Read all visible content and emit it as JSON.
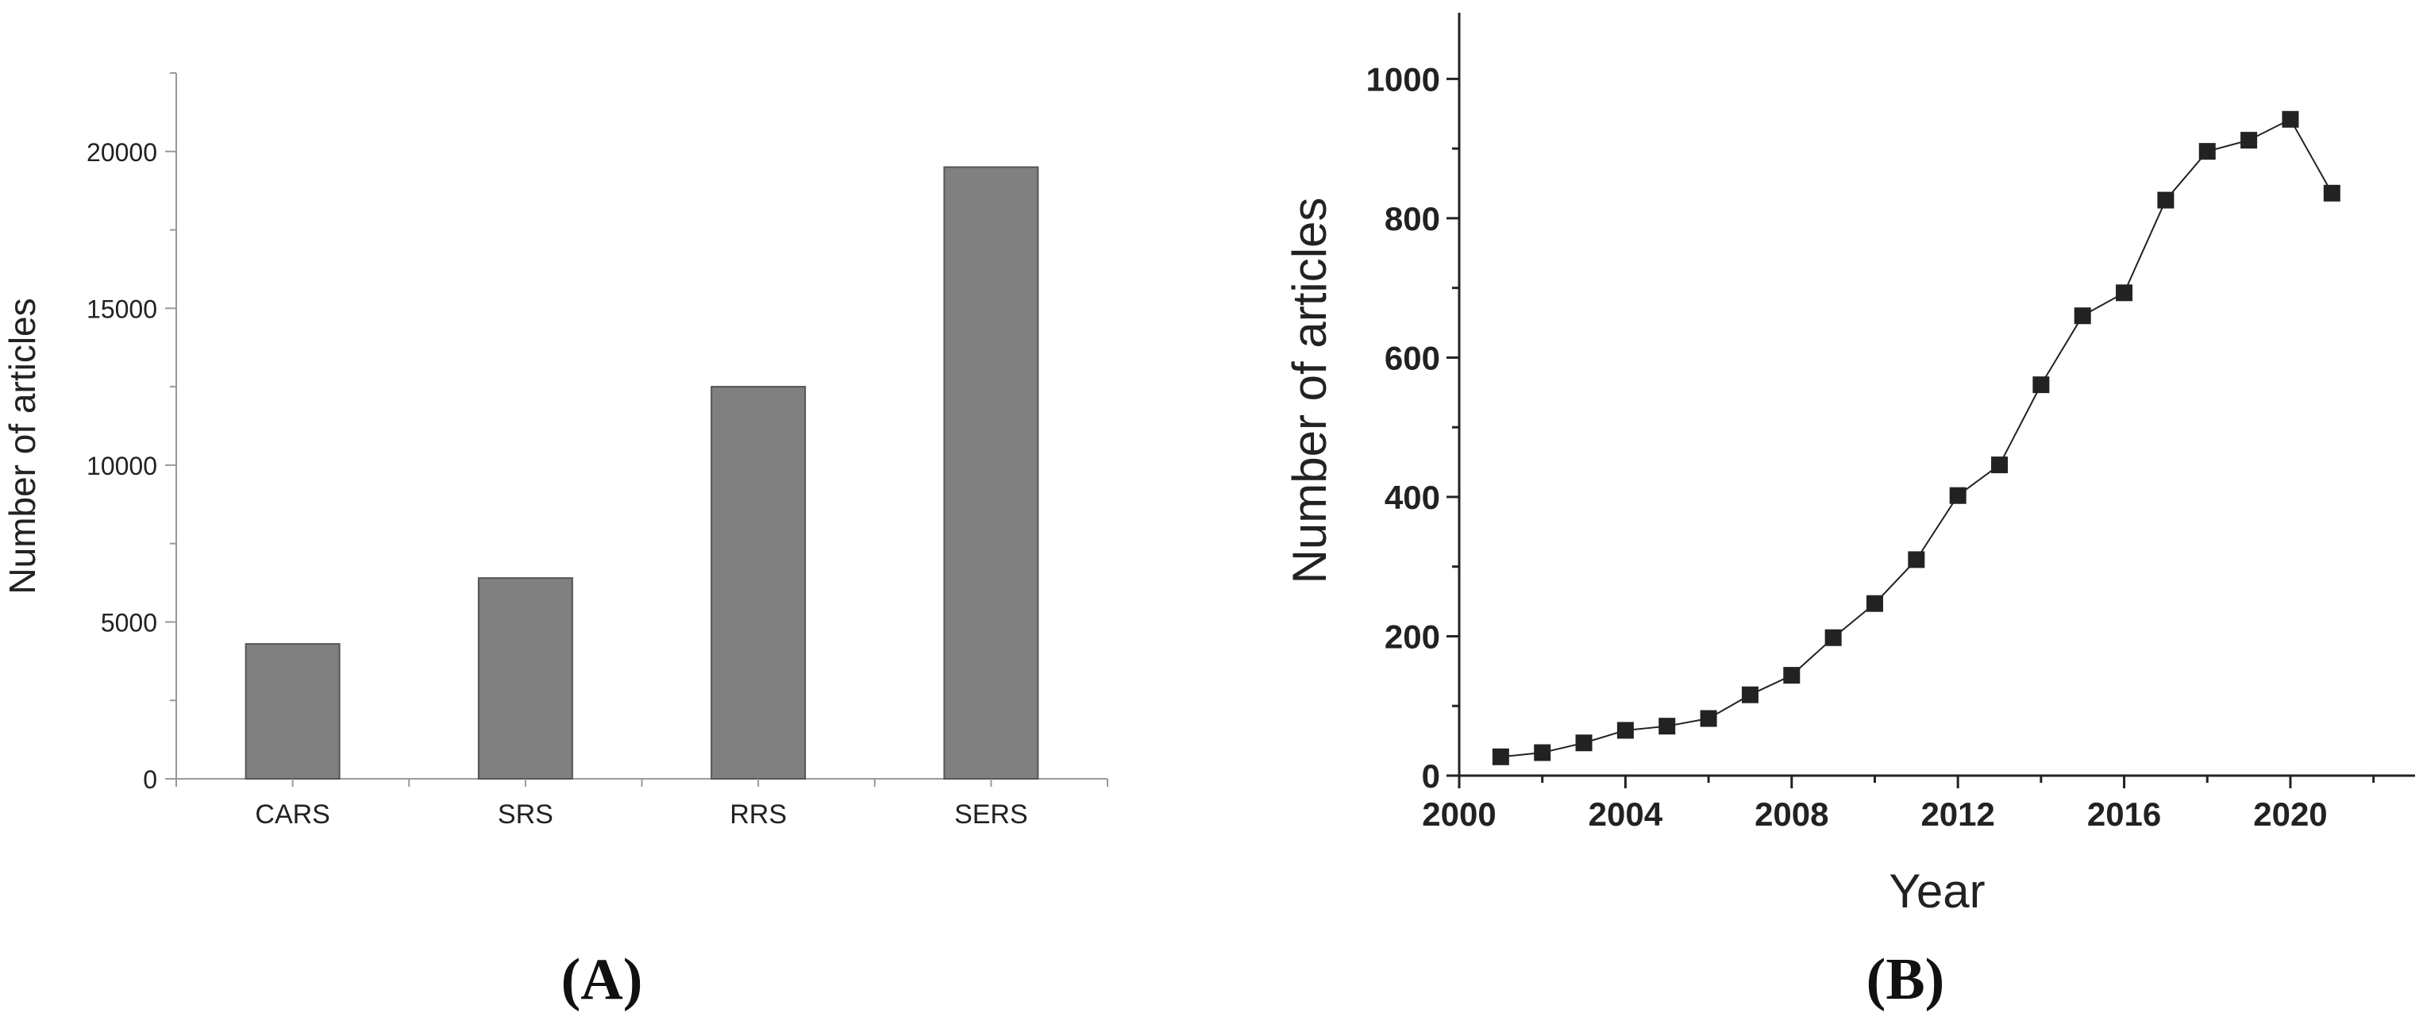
{
  "panels": {
    "a": {
      "label": "(A)"
    },
    "b": {
      "label": "(B)"
    }
  },
  "chart_data": [
    {
      "type": "bar",
      "title": "",
      "xlabel": "",
      "ylabel": "Number of articles",
      "categories": [
        "CARS",
        "SRS",
        "RRS",
        "SERS"
      ],
      "values": [
        4300,
        6400,
        12500,
        19500
      ],
      "ylim": [
        0,
        22500
      ],
      "yticks": [
        0,
        5000,
        10000,
        15000,
        20000
      ],
      "ytick_labels": [
        "0",
        "5000",
        "10000",
        "15000",
        "20000"
      ],
      "bar_color": "#808080",
      "grid": false
    },
    {
      "type": "line",
      "title": "",
      "xlabel": "Year",
      "ylabel": "Number of articles",
      "x": [
        2001,
        2002,
        2003,
        2004,
        2005,
        2006,
        2007,
        2008,
        2009,
        2010,
        2011,
        2012,
        2013,
        2014,
        2015,
        2016,
        2017,
        2018,
        2019,
        2020,
        2021
      ],
      "y": [
        27,
        33,
        47,
        65,
        71,
        82,
        116,
        144,
        198,
        247,
        310,
        402,
        446,
        561,
        660,
        693,
        826,
        896,
        912,
        942,
        836
      ],
      "xlim": [
        2000,
        2023
      ],
      "ylim": [
        0,
        1095
      ],
      "xticks": [
        2000,
        2004,
        2008,
        2012,
        2016,
        2020
      ],
      "xtick_labels": [
        "2000",
        "2004",
        "2008",
        "2012",
        "2016",
        "2020"
      ],
      "yticks": [
        0,
        200,
        400,
        600,
        800,
        1000
      ],
      "ytick_labels": [
        "0",
        "200",
        "400",
        "600",
        "800",
        "1000"
      ],
      "marker": "square",
      "line_color": "#222222",
      "grid": false
    }
  ]
}
